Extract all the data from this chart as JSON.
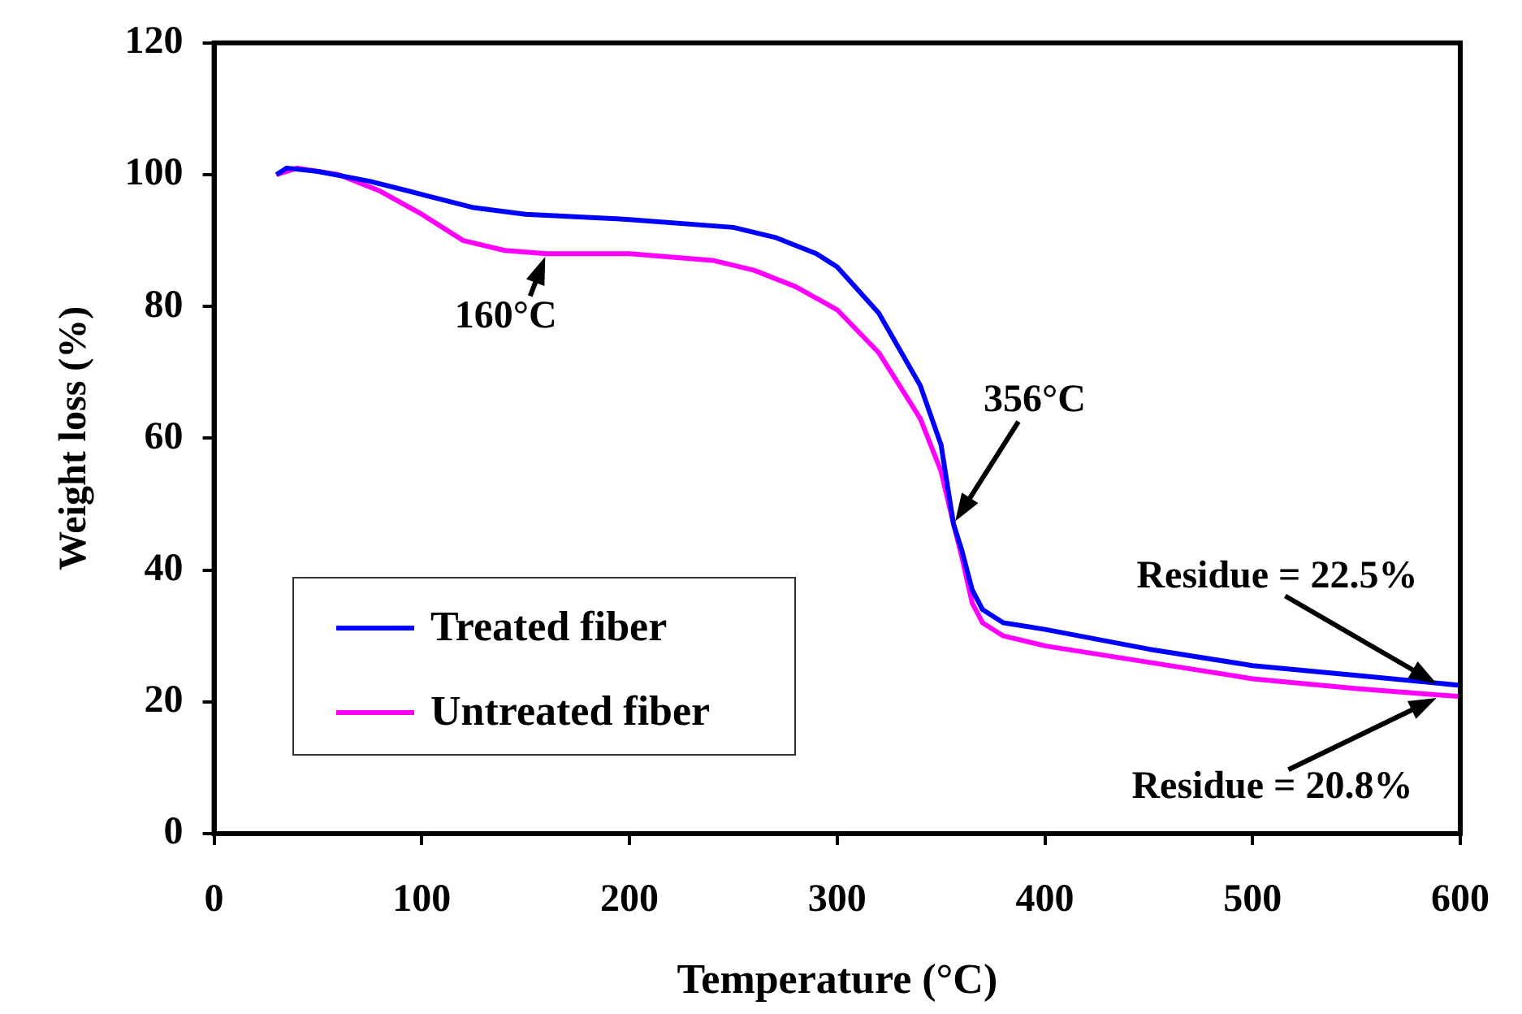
{
  "chart_data": {
    "type": "line",
    "xlabel": "Temperature (°C)",
    "ylabel": "Weight loss (%)",
    "xlim": [
      0,
      600
    ],
    "xticks": [
      0,
      100,
      200,
      300,
      400,
      500,
      600
    ],
    "ylim": [
      0,
      120
    ],
    "yticks": [
      0,
      20,
      40,
      60,
      80,
      100,
      120
    ],
    "grid": false,
    "legend": "bottom left",
    "marker": "none",
    "line_style": "solid",
    "series": [
      {
        "name": "Treated fiber",
        "color": "#0000ff",
        "x": [
          30,
          35,
          50,
          75,
          100,
          125,
          150,
          200,
          250,
          270,
          290,
          300,
          320,
          340,
          350,
          356,
          360,
          365,
          370,
          380,
          400,
          450,
          500,
          550,
          600
        ],
        "values": [
          100,
          101,
          100.5,
          99,
          97,
          95,
          94,
          93.2,
          92,
          90.5,
          88,
          86,
          79,
          68,
          59,
          47,
          43,
          37,
          34,
          32,
          31,
          28,
          25.5,
          24,
          22.5
        ]
      },
      {
        "name": "Untreated fiber",
        "color": "#ff00ff",
        "x": [
          30,
          40,
          60,
          80,
          100,
          120,
          140,
          160,
          200,
          240,
          260,
          280,
          300,
          320,
          340,
          350,
          356,
          360,
          365,
          370,
          380,
          400,
          450,
          500,
          550,
          600
        ],
        "values": [
          100,
          101,
          100,
          97.5,
          94,
          90,
          88.5,
          88,
          88,
          87,
          85.5,
          83,
          79.5,
          73,
          63,
          55,
          47,
          42,
          35,
          32,
          30,
          28.5,
          26,
          23.5,
          22,
          20.8
        ]
      }
    ],
    "annotations": [
      {
        "text": "160°C",
        "x": 160,
        "y": 88
      },
      {
        "text": "356°C",
        "x": 356,
        "y": 47
      },
      {
        "text": "Residue = 22.5%",
        "x": 590,
        "y": 22.5
      },
      {
        "text": "Residue = 20.8%",
        "x": 590,
        "y": 20.8
      }
    ]
  }
}
